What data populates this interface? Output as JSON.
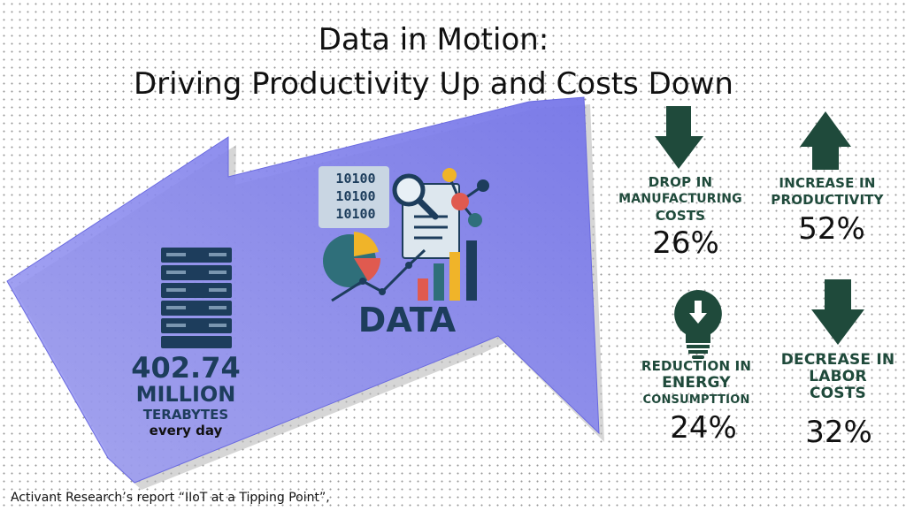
{
  "title": {
    "line1": "Data in Motion:",
    "line2": "Driving Productivity Up and Costs Down"
  },
  "center": {
    "binary_lines": [
      "10100",
      "10100",
      "10100"
    ],
    "data_word": "DATA"
  },
  "volume": {
    "number": "402.74",
    "unit": "MILLION",
    "measure": "TERABYTES",
    "period": "every day"
  },
  "stats": [
    {
      "label_lines": [
        "DROP IN",
        "MANUFACTURING",
        "COSTS"
      ],
      "value": "26%",
      "icon": "down-arrow-icon"
    },
    {
      "label_lines": [
        "INCREASE IN",
        "PRODUCTIVITY"
      ],
      "value": "52%",
      "icon": "up-arrow-icon"
    },
    {
      "label_lines": [
        "REDUCTION IN",
        "ENERGY",
        "CONSUMPTTION"
      ],
      "value": "24%",
      "icon": "lightbulb-icon"
    },
    {
      "label_lines": [
        "DECREASE IN",
        "LABOR",
        "COSTS"
      ],
      "value": "32%",
      "icon": "down-arrow-icon"
    }
  ],
  "source": "Activant Research’s report “IIoT at a Tipping Point”,",
  "colors": {
    "arrow_fill": "#8c8cf0",
    "dark_green": "#1f4a3b",
    "navy": "#1d3d5c",
    "teal": "#2f6f7a",
    "yellow": "#f0b429",
    "red": "#e05a4f"
  }
}
